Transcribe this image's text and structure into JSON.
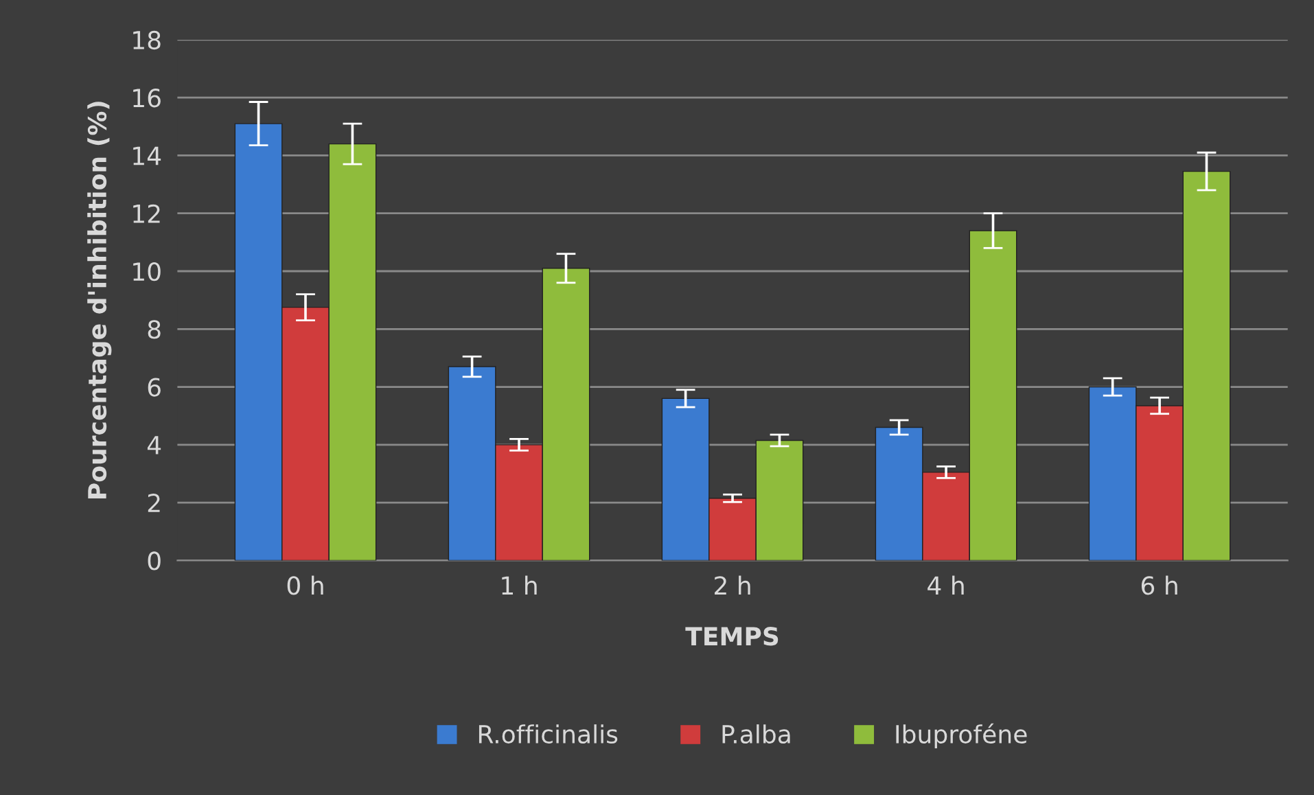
{
  "chart_data": {
    "type": "bar",
    "xlabel": "TEMPS",
    "ylabel": "Pourcentage d'inhibition (%)",
    "categories": [
      "0 h",
      "1 h",
      "2 h",
      "4 h",
      "6 h"
    ],
    "series": [
      {
        "name": "R.officinalis",
        "color": "#3b7bd0",
        "values": [
          15.1,
          6.7,
          5.6,
          4.6,
          6.0
        ],
        "errors": [
          0.75,
          0.35,
          0.3,
          0.25,
          0.3
        ]
      },
      {
        "name": "P.alba",
        "color": "#d03c3c",
        "values": [
          8.75,
          4.0,
          2.15,
          3.05,
          5.35
        ],
        "errors": [
          0.45,
          0.2,
          0.13,
          0.2,
          0.28
        ]
      },
      {
        "name": "Ibuproféne",
        "color": "#8fbc3c",
        "values": [
          14.4,
          10.1,
          4.15,
          11.4,
          13.45
        ],
        "errors": [
          0.7,
          0.5,
          0.2,
          0.6,
          0.65
        ]
      }
    ],
    "ylim": [
      0,
      18
    ],
    "yticks": [
      0,
      2,
      4,
      6,
      8,
      10,
      12,
      14,
      16,
      18
    ],
    "grid": "y",
    "legend": "bottom"
  }
}
